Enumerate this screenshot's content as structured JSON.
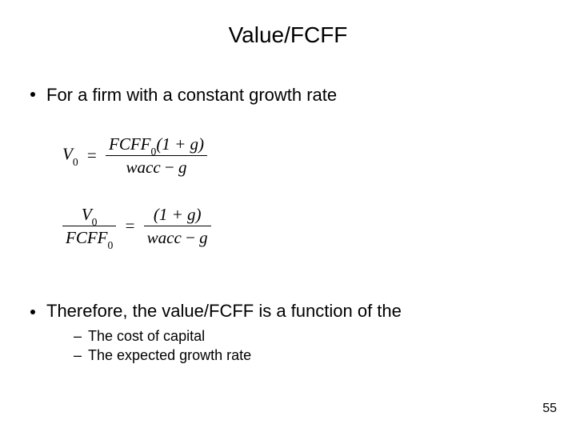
{
  "title": "Value/FCFF",
  "bullet1": "For a firm with a constant growth rate",
  "formula1": {
    "lhs_var": "V",
    "lhs_sub": "0",
    "num_a": "FCFF",
    "num_a_sub": "0",
    "num_b": "(1 + g)",
    "den_a": "wacc",
    "den_minus": " − ",
    "den_b": "g",
    "eq": "="
  },
  "formula2": {
    "lhs_num_var": "V",
    "lhs_num_sub": "0",
    "lhs_den_var": "FCFF",
    "lhs_den_sub": "0",
    "eq": "=",
    "rhs_num": "(1 + g)",
    "rhs_den_a": "wacc",
    "rhs_den_minus": " − ",
    "rhs_den_b": "g"
  },
  "bullet2": "Therefore, the value/FCFF is a function of the",
  "sub1": "The cost of capital",
  "sub2": "The expected growth rate",
  "dash": "–",
  "pageNumber": "55",
  "colors": {
    "background": "#ffffff",
    "text": "#000000"
  },
  "fonts": {
    "body": "Arial",
    "math": "Times New Roman",
    "title_size_pt": 28,
    "bullet_size_pt": 22,
    "sub_bullet_size_pt": 18,
    "math_size_pt": 21
  }
}
